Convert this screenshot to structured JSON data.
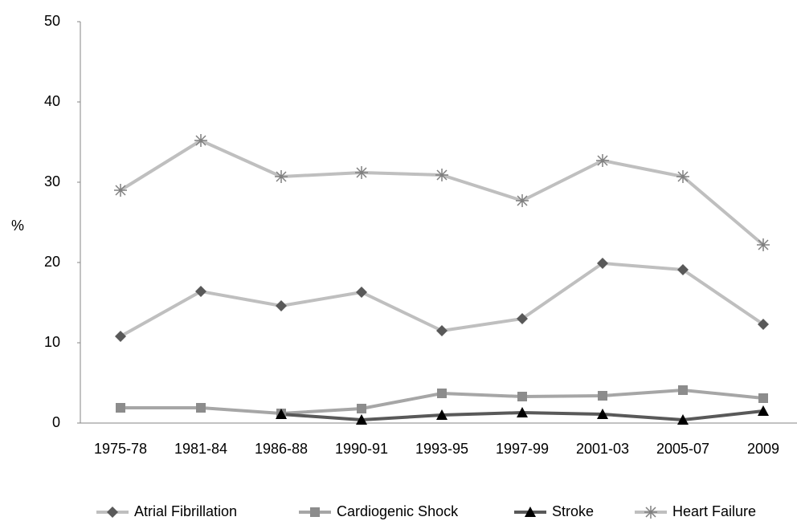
{
  "chart_data": {
    "type": "line",
    "y_label": "%",
    "categories": [
      "1975-78",
      "1981-84",
      "1986-88",
      "1990-91",
      "1993-95",
      "1997-99",
      "2001-03",
      "2005-07",
      "2009"
    ],
    "ylim": [
      0,
      50
    ],
    "yticks": [
      0,
      10,
      20,
      30,
      40,
      50
    ],
    "grid": false,
    "legend": "bottom",
    "series": [
      {
        "name": "Atrial Fibrillation",
        "color": "#bfbfbf",
        "marker_color": "#595959",
        "marker": "diamond",
        "values": [
          10.8,
          16.4,
          14.6,
          16.3,
          11.5,
          13.0,
          19.9,
          19.1,
          12.3
        ]
      },
      {
        "name": "Cardiogenic Shock",
        "color": "#a6a6a6",
        "marker_color": "#8c8c8c",
        "marker": "square",
        "values": [
          1.9,
          1.9,
          1.2,
          1.8,
          3.7,
          3.3,
          3.4,
          4.1,
          3.1
        ]
      },
      {
        "name": "Stroke",
        "color": "#595959",
        "marker_color": "#000000",
        "marker": "triangle",
        "values": [
          null,
          null,
          1.1,
          0.4,
          1.0,
          1.3,
          1.1,
          0.4,
          1.5
        ]
      },
      {
        "name": "Heart Failure",
        "color": "#bfbfbf",
        "marker_color": "#808080",
        "marker": "asterisk",
        "values": [
          29.0,
          35.2,
          30.7,
          31.2,
          30.9,
          27.7,
          32.7,
          30.7,
          22.2
        ]
      }
    ]
  }
}
